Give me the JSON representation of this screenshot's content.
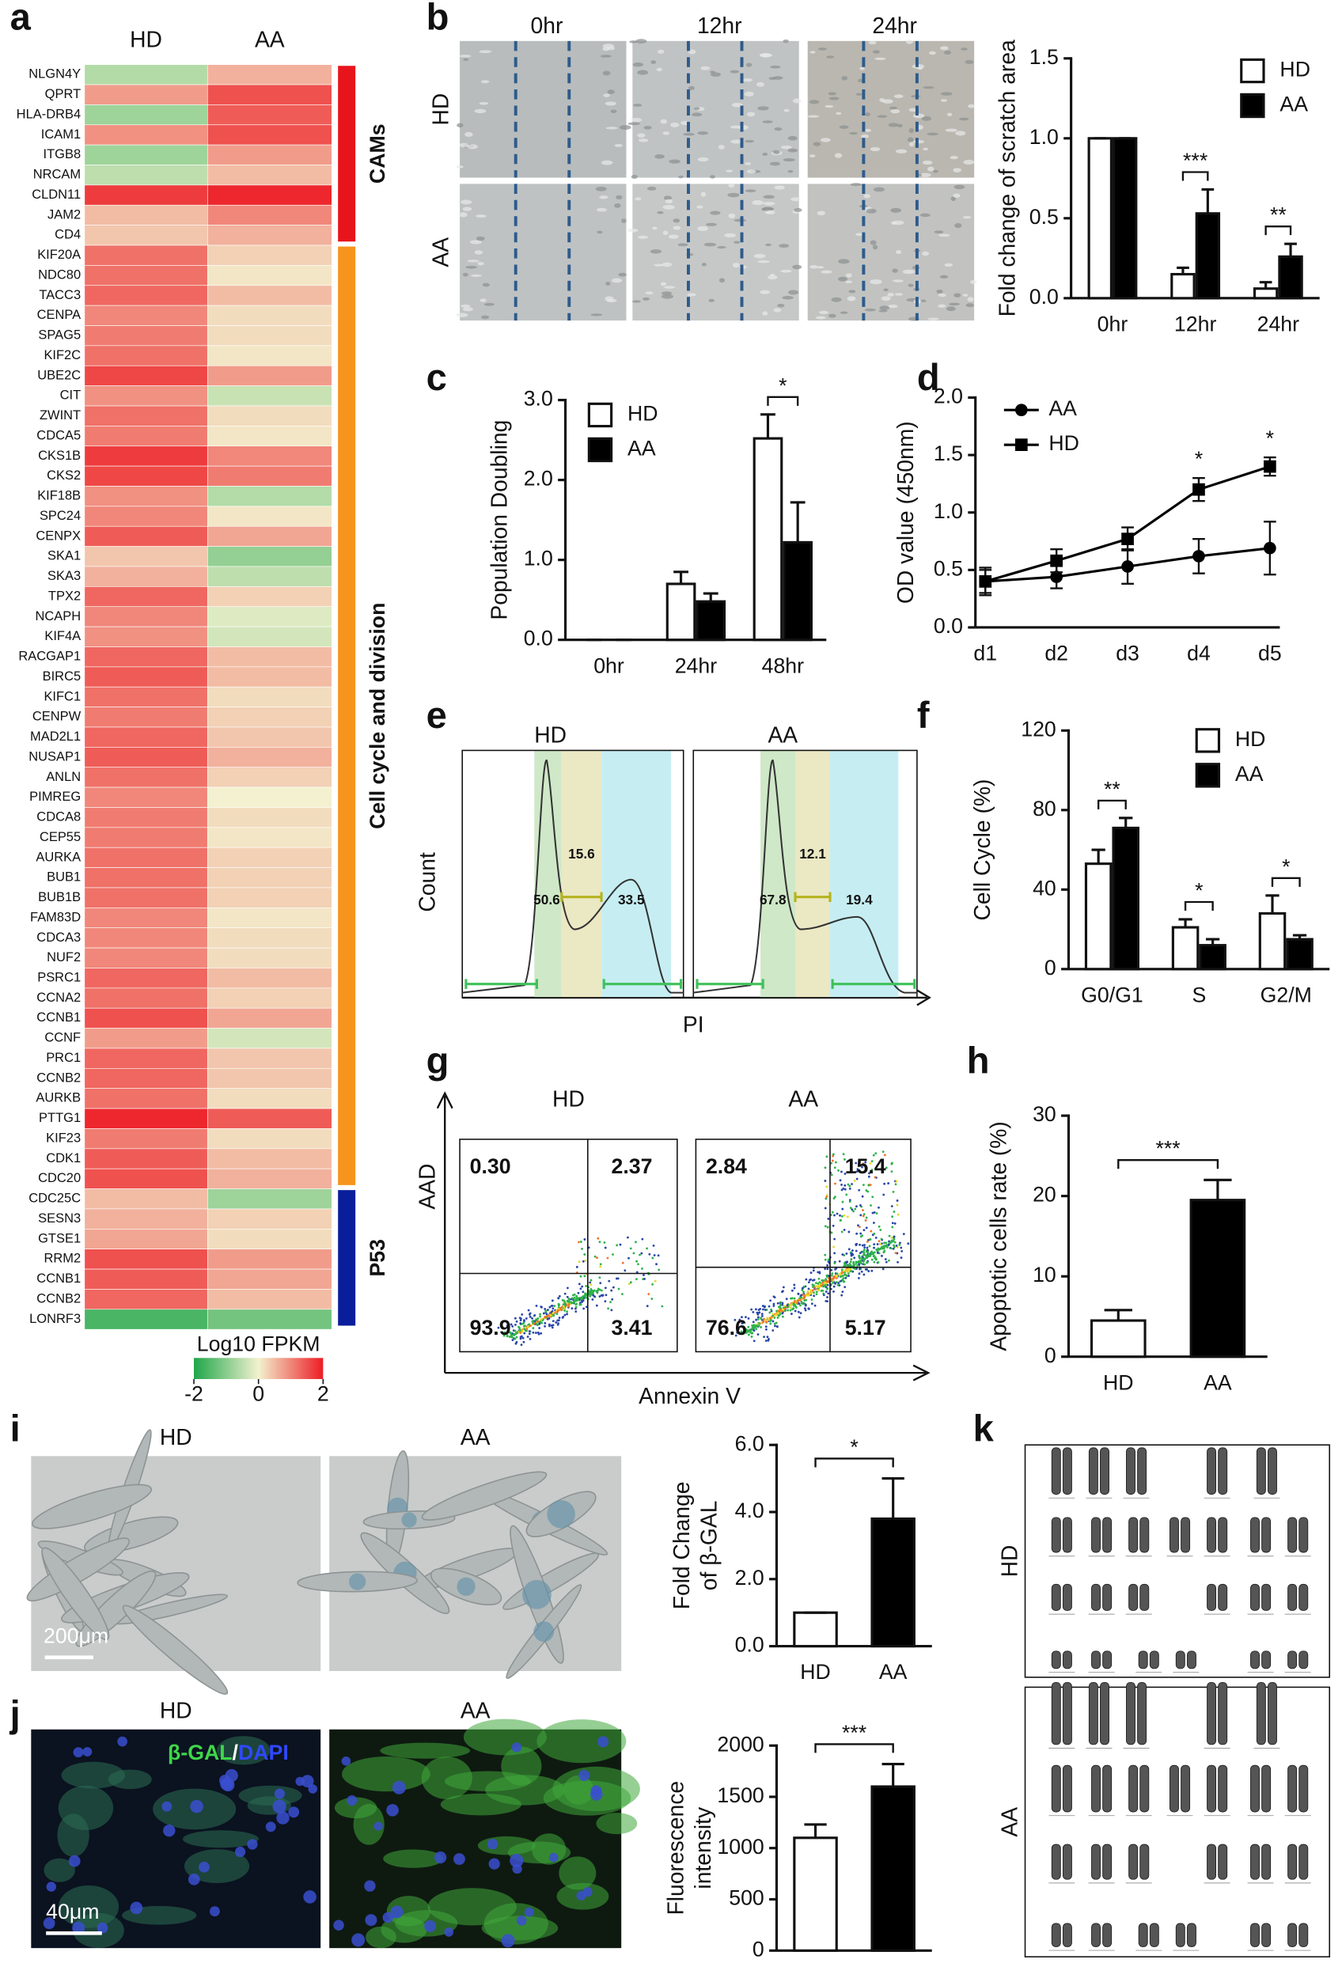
{
  "panel_labels": [
    "a",
    "b",
    "c",
    "d",
    "e",
    "f",
    "g",
    "h",
    "i",
    "j",
    "k"
  ],
  "heatmap": {
    "columns": [
      "HD",
      "AA"
    ],
    "clim": [
      -2,
      2
    ],
    "colormap": [
      "#1fa64a",
      "#f3f1cf",
      "#ed1c24"
    ],
    "colorbar_label": "Log10 FPKM",
    "colorbar_ticks": [
      -2,
      0,
      2
    ],
    "groups": [
      {
        "name": "CAMs",
        "color": "#e8141c",
        "genes": [
          "NLGN4Y",
          "QPRT",
          "HLA-DRB4",
          "ICAM1",
          "ITGB8",
          "NRCAM",
          "CLDN11",
          "JAM2",
          "CD4"
        ],
        "values": [
          [
            -0.6,
            0.6
          ],
          [
            0.8,
            1.5
          ],
          [
            -0.8,
            1.4
          ],
          [
            0.9,
            1.5
          ],
          [
            -0.8,
            0.8
          ],
          [
            -0.5,
            0.5
          ],
          [
            1.7,
            1.9
          ],
          [
            0.5,
            1.0
          ],
          [
            0.4,
            0.6
          ]
        ]
      },
      {
        "name": "Cell cycle and division",
        "color": "#f7941d",
        "genes": [
          "KIF20A",
          "NDC80",
          "TACC3",
          "CENPA",
          "SPAG5",
          "KIF2C",
          "UBE2C",
          "CIT",
          "ZWINT",
          "CDCA5",
          "CKS1B",
          "CKS2",
          "KIF18B",
          "SPC24",
          "CENPX",
          "SKA1",
          "SKA3",
          "TPX2",
          "NCAPH",
          "KIF4A",
          "RACGAP1",
          "BIRC5",
          "KIFC1",
          "CENPW",
          "MAD2L1",
          "NUSAP1",
          "ANLN",
          "PIMREG",
          "CDCA8",
          "CEP55",
          "AURKA",
          "BUB1",
          "BUB1B",
          "FAM83D",
          "CDCA3",
          "NUF2",
          "PSRC1",
          "CCNA2",
          "CCNB1",
          "CCNF",
          "PRC1",
          "CCNB2",
          "AURKB",
          "PTTG1",
          "KIF23",
          "CDK1",
          "CDC20"
        ],
        "values": [
          [
            1.2,
            0.3
          ],
          [
            1.2,
            0.1
          ],
          [
            1.3,
            0.5
          ],
          [
            1.0,
            0.2
          ],
          [
            1.1,
            0.2
          ],
          [
            1.2,
            0.1
          ],
          [
            1.6,
            0.8
          ],
          [
            0.9,
            -0.4
          ],
          [
            1.2,
            0.2
          ],
          [
            1.1,
            0.1
          ],
          [
            1.7,
            1.0
          ],
          [
            1.6,
            1.1
          ],
          [
            0.9,
            -0.6
          ],
          [
            1.0,
            0.1
          ],
          [
            1.4,
            0.7
          ],
          [
            0.4,
            -0.9
          ],
          [
            0.6,
            -0.5
          ],
          [
            1.3,
            0.3
          ],
          [
            1.0,
            -0.2
          ],
          [
            0.9,
            -0.3
          ],
          [
            1.3,
            0.5
          ],
          [
            1.4,
            0.5
          ],
          [
            1.2,
            0.2
          ],
          [
            1.1,
            0.3
          ],
          [
            1.3,
            0.4
          ],
          [
            1.4,
            0.6
          ],
          [
            1.2,
            0.3
          ],
          [
            1.0,
            0.0
          ],
          [
            1.1,
            0.2
          ],
          [
            1.1,
            0.1
          ],
          [
            1.2,
            0.3
          ],
          [
            1.2,
            0.3
          ],
          [
            1.2,
            0.3
          ],
          [
            1.0,
            0.1
          ],
          [
            1.0,
            0.2
          ],
          [
            1.0,
            0.2
          ],
          [
            1.3,
            0.5
          ],
          [
            1.2,
            0.3
          ],
          [
            1.5,
            0.7
          ],
          [
            0.8,
            -0.3
          ],
          [
            1.3,
            0.4
          ],
          [
            1.3,
            0.4
          ],
          [
            1.2,
            0.2
          ],
          [
            1.9,
            1.4
          ],
          [
            1.1,
            0.2
          ],
          [
            1.4,
            0.5
          ],
          [
            1.5,
            0.6
          ]
        ]
      },
      {
        "name": "P53",
        "color": "#0a1e9c",
        "genes": [
          "CDC25C",
          "SESN3",
          "GTSE1",
          "RRM2",
          "CCNB1",
          "CCNB2",
          "LONRF3"
        ],
        "values": [
          [
            0.5,
            -0.8
          ],
          [
            0.6,
            0.3
          ],
          [
            0.7,
            0.2
          ],
          [
            1.5,
            0.8
          ],
          [
            1.4,
            0.7
          ],
          [
            1.3,
            0.5
          ],
          [
            -1.6,
            -1.2
          ]
        ]
      }
    ]
  },
  "scratch_assay": {
    "times": [
      "0hr",
      "12hr",
      "24hr"
    ],
    "groups": [
      "HD",
      "AA"
    ]
  },
  "chart_data": [
    {
      "type": "bar",
      "y_label": "Fold change of scratch area",
      "categories": [
        "0hr",
        "12hr",
        "24hr"
      ],
      "series": [
        {
          "name": "HD",
          "color": "#ffffff",
          "values": [
            1,
            0.15,
            0.06
          ],
          "errors": [
            0,
            0.04,
            0.04
          ]
        },
        {
          "name": "AA",
          "color": "#000000",
          "values": [
            1,
            0.53,
            0.26
          ],
          "errors": [
            0,
            0.15,
            0.08
          ]
        }
      ],
      "ylim": [
        0,
        1.5
      ],
      "yticks": [
        {
          "value": 0,
          "label": "0.0"
        },
        0.5,
        {
          "value": 1,
          "label": "1.0"
        },
        1.5
      ],
      "significance": [
        null,
        "***",
        "**"
      ],
      "legend": "upper right"
    },
    {
      "type": "bar",
      "y_label": "Population Doubling",
      "categories": [
        "0hr",
        "24hr",
        "48hr"
      ],
      "series": [
        {
          "name": "HD",
          "color": "#ffffff",
          "values": [
            0,
            0.7,
            2.52
          ],
          "errors": [
            0,
            0.15,
            0.3
          ]
        },
        {
          "name": "AA",
          "color": "#000000",
          "values": [
            0,
            0.48,
            1.22
          ],
          "errors": [
            0,
            0.1,
            0.5
          ]
        }
      ],
      "ylim": [
        0,
        3
      ],
      "yticks": [
        {
          "value": 0,
          "label": "0.0"
        },
        {
          "value": 1,
          "label": "1.0"
        },
        {
          "value": 2,
          "label": "2.0"
        },
        {
          "value": 3,
          "label": "3.0"
        }
      ],
      "significance": [
        null,
        null,
        "*"
      ],
      "legend": "upper left"
    },
    {
      "type": "line",
      "y_label": "OD value (450nm)",
      "categories": [
        "d1",
        "d2",
        "d3",
        "d4",
        "d5"
      ],
      "series": [
        {
          "name": "AA",
          "color": "#000000",
          "marker": "circle",
          "values": [
            0.4,
            0.44,
            0.53,
            0.62,
            0.69
          ],
          "errors": [
            0.12,
            0.1,
            0.15,
            0.15,
            0.23
          ]
        },
        {
          "name": "HD",
          "color": "#000000",
          "marker": "square",
          "values": [
            0.4,
            0.58,
            0.77,
            1.2,
            1.4
          ],
          "errors": [
            0.1,
            0.1,
            0.1,
            0.1,
            0.08
          ]
        }
      ],
      "ylim": [
        0,
        2
      ],
      "yticks": [
        {
          "value": 0,
          "label": "0.0"
        },
        0.5,
        {
          "value": 1,
          "label": "1.0"
        },
        1.5,
        {
          "value": 2,
          "label": "2.0"
        }
      ],
      "significance": [
        null,
        null,
        null,
        "*",
        "*"
      ],
      "legend": "upper left"
    },
    {
      "type": "bar",
      "y_label": "Cell Cycle (%)",
      "categories": [
        "G0/G1",
        "S",
        "G2/M"
      ],
      "series": [
        {
          "name": "HD",
          "color": "#ffffff",
          "values": [
            53,
            21,
            28
          ],
          "errors": [
            7,
            4,
            9
          ]
        },
        {
          "name": "AA",
          "color": "#000000",
          "values": [
            71,
            12,
            15
          ],
          "errors": [
            5,
            3,
            2
          ]
        }
      ],
      "ylim": [
        0,
        120
      ],
      "yticks": [
        0,
        40,
        80,
        120
      ],
      "significance": [
        "**",
        "*",
        "*"
      ],
      "legend": "upper right"
    },
    {
      "type": "bar",
      "y_label": "Apoptotic cells rate (%)",
      "categories": [
        "HD",
        "AA"
      ],
      "series": [
        {
          "colors": [
            "#ffffff",
            "#000000"
          ],
          "values": [
            4.5,
            19.5
          ],
          "errors": [
            1.3,
            2.5
          ]
        }
      ],
      "ylim": [
        0,
        30
      ],
      "yticks": [
        0,
        10,
        20,
        30
      ],
      "significance": "***"
    },
    {
      "type": "bar",
      "y_label": [
        "Fold Change",
        "of β-GAL"
      ],
      "categories": [
        "HD",
        "AA"
      ],
      "series": [
        {
          "colors": [
            "#ffffff",
            "#000000"
          ],
          "values": [
            1,
            3.8
          ],
          "errors": [
            0,
            1.2
          ]
        }
      ],
      "ylim": [
        0,
        6
      ],
      "yticks": [
        {
          "value": 0,
          "label": "0.0"
        },
        {
          "value": 2,
          "label": "2.0"
        },
        {
          "value": 4,
          "label": "4.0"
        },
        {
          "value": 6,
          "label": "6.0"
        }
      ],
      "significance": "*"
    },
    {
      "type": "bar",
      "y_label": [
        "Fluorescence",
        "intensity"
      ],
      "categories": [
        "HD",
        "AA"
      ],
      "series": [
        {
          "colors": [
            "#ffffff",
            "#000000"
          ],
          "values": [
            1100,
            1600
          ],
          "errors": [
            130,
            220
          ]
        }
      ],
      "ylim": [
        0,
        2000
      ],
      "yticks": [
        0,
        500,
        1000,
        1500,
        2000
      ],
      "significance": "***"
    }
  ],
  "cell_cycle_flow": {
    "y_label": "Count",
    "x_label": "PI",
    "samples": [
      {
        "name": "HD",
        "g0g1": "50.6",
        "s": "15.6",
        "g2m": "33.5"
      },
      {
        "name": "AA",
        "g0g1": "67.8",
        "s": "12.1",
        "g2m": "19.4"
      }
    ]
  },
  "apoptosis_flow": {
    "y_label": "AAD",
    "x_label": "Annexin V",
    "samples": [
      {
        "name": "HD",
        "quadrants": [
          "0.30",
          "2.37",
          "93.9",
          "3.41"
        ]
      },
      {
        "name": "AA",
        "quadrants": [
          "2.84",
          "15.4",
          "76.6",
          "5.17"
        ]
      }
    ]
  },
  "senescence_staining": {
    "groups": [
      "HD",
      "AA"
    ],
    "scale_bar": "200μm"
  },
  "fluorescence_staining": {
    "groups": [
      "HD",
      "AA"
    ],
    "stain": [
      "β-GAL",
      "/",
      "DAPI"
    ],
    "scale_bar": "40μm"
  },
  "karyotype": {
    "groups": [
      "HD",
      "AA"
    ]
  }
}
